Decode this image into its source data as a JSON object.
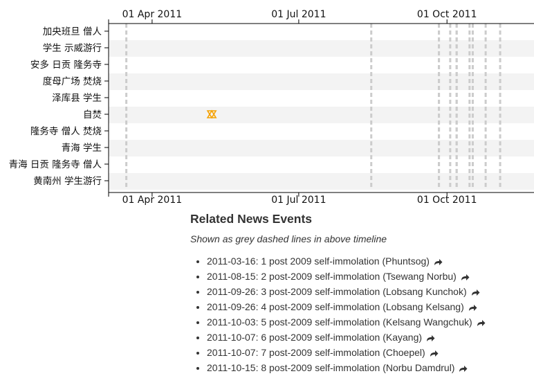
{
  "chart_data": {
    "type": "timeline",
    "x_axis": {
      "range": [
        "2011-03-05",
        "2011-11-24"
      ],
      "tick_labels": [
        "01 Apr 2011",
        "01 Jul 2011",
        "01 Oct 2011"
      ],
      "tick_dates": [
        "2011-04-01",
        "2011-07-01",
        "2011-10-01"
      ]
    },
    "rows": [
      "加央班旦 僧人",
      "学生 示威游行",
      "安多 日贡 隆务寺",
      "度母广场 焚烧",
      "泽库县 学生",
      "自焚",
      "隆务寺 僧人 焚烧",
      "青海 学生",
      "青海 日贡 隆务寺 僧人",
      "黄南州 学生游行"
    ],
    "events": [
      {
        "row": "自焚",
        "date": "2011-05-08",
        "marker": "hourglass",
        "color": "#f5a100"
      }
    ],
    "reference_lines": [
      "2011-03-16",
      "2011-08-15",
      "2011-09-26",
      "2011-09-26",
      "2011-10-03",
      "2011-10-07",
      "2011-10-07",
      "2011-10-15",
      "2011-10-17",
      "2011-10-25",
      "2011-11-03"
    ],
    "reference_line_color": "#cccccc",
    "band_color": "#f3f3f3"
  },
  "news": {
    "title": "Related News Events",
    "subtitle": "Shown as grey dashed lines in above timeline",
    "items": [
      "2011-03-16: 1 post 2009 self-immolation (Phuntsog)",
      "2011-08-15: 2 post-2009 self-immolation (Tsewang Norbu)",
      "2011-09-26: 3 post-2009 self-immolation (Lobsang Kunchok)",
      "2011-09-26: 4 post-2009 self-immolation (Lobsang Kelsang)",
      "2011-10-03: 5 post-2009 self-immolation (Kelsang Wangchuk)",
      "2011-10-07: 6 post-2009 self-immolation (Kayang)",
      "2011-10-07: 7 post-2009 self-immolation (Choepel)",
      "2011-10-15: 8 post-2009 self-immolation (Norbu Damdrul)"
    ],
    "share_icon": "share-arrow-icon"
  }
}
